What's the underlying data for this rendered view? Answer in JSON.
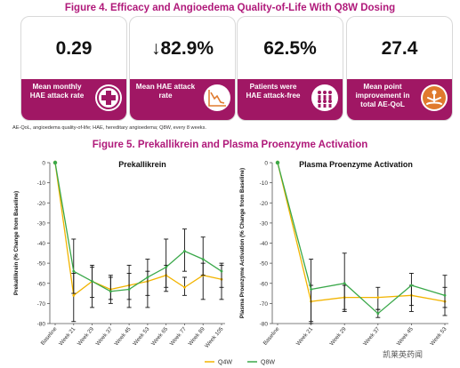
{
  "figure4": {
    "title": "Figure 4. Efficacy and Angioedema Quality-of-Life With Q8W Dosing",
    "cards": [
      {
        "value": "0.29",
        "label": "Mean monthly HAE attack rate",
        "icon": "medical-cross-icon"
      },
      {
        "value": "↓82.9%",
        "label": "Mean HAE attack rate",
        "icon": "decline-chart-icon"
      },
      {
        "value": "62.5%",
        "label": "Patients were HAE attack-free",
        "icon": "people-group-icon"
      },
      {
        "value": "27.4",
        "label": "Mean point improvement in total AE-QoL",
        "icon": "meditation-person-icon"
      }
    ],
    "footnote": "AE-QoL, angioedema quality-of-life; HAE, hereditary angioedema; Q8W, every 8 weeks."
  },
  "figure5": {
    "title": "Figure 5. Prekallikrein and Plasma Proenzyme Activation"
  },
  "legend": {
    "q4w": "Q4W",
    "q8w": "Q8W"
  },
  "colors": {
    "brand": "#a01764",
    "title": "#b0197a",
    "q4w": "#f2b400",
    "q8w": "#3aa84a"
  },
  "watermark": "凯莱英药闻",
  "chart_data": [
    {
      "type": "line",
      "title": "Prekallikrein",
      "ylabel": "Prekallikrein (% Change from Baseline)",
      "categories": [
        "Baseline",
        "Week 21",
        "Week 29",
        "Week 37",
        "Week 45",
        "Week 53",
        "Week 65",
        "Week 77",
        "Week 89",
        "Week 105"
      ],
      "ylim": [
        -80,
        0
      ],
      "yticks": [
        0,
        -10,
        -20,
        -30,
        -40,
        -50,
        -60,
        -70,
        -80
      ],
      "series": [
        {
          "name": "Q4W",
          "values": [
            0,
            -66,
            -59,
            -63,
            -61,
            -59,
            -56,
            -62,
            -56,
            -58
          ],
          "err_low": [
            0,
            -79,
            -72,
            -70,
            -72,
            -72,
            -64,
            -66,
            -68,
            -68
          ],
          "err_high": [
            0,
            -55,
            -52,
            -57,
            -55,
            -54,
            -51,
            -57,
            -50,
            -51
          ]
        },
        {
          "name": "Q8W",
          "values": [
            0,
            -54,
            -59,
            -64,
            -63,
            -57,
            -52,
            -44,
            -48,
            -54
          ],
          "err_low": [
            0,
            -65,
            -67,
            -68,
            -68,
            -66,
            -62,
            -54,
            -56,
            -62
          ],
          "err_high": [
            0,
            -38,
            -51,
            -56,
            -51,
            -48,
            -38,
            -33,
            -37,
            -50
          ]
        }
      ]
    },
    {
      "type": "line",
      "title": "Plasma Proenzyme Activation",
      "ylabel": "Plasma Proenzyme Activation (% Change from Baseline)",
      "categories": [
        "Baseline",
        "Week 21",
        "Week 29",
        "Week 37",
        "Week 45",
        "Week 53"
      ],
      "ylim": [
        -80,
        0
      ],
      "yticks": [
        0,
        -10,
        -20,
        -30,
        -40,
        -50,
        -60,
        -70,
        -80
      ],
      "series": [
        {
          "name": "Q4W",
          "values": [
            0,
            -69,
            -67,
            -67,
            -66,
            -69
          ],
          "err_low": [
            0,
            -79,
            -73,
            -73,
            -71,
            -76
          ],
          "err_high": [
            0,
            -61,
            -61,
            -62,
            -61,
            -62
          ]
        },
        {
          "name": "Q8W",
          "values": [
            0,
            -63,
            -60,
            -75,
            -61,
            -66
          ],
          "err_low": [
            0,
            -80,
            -74,
            -77,
            -74,
            -72
          ],
          "err_high": [
            0,
            -48,
            -45,
            -73,
            -55,
            -56
          ]
        }
      ]
    }
  ]
}
